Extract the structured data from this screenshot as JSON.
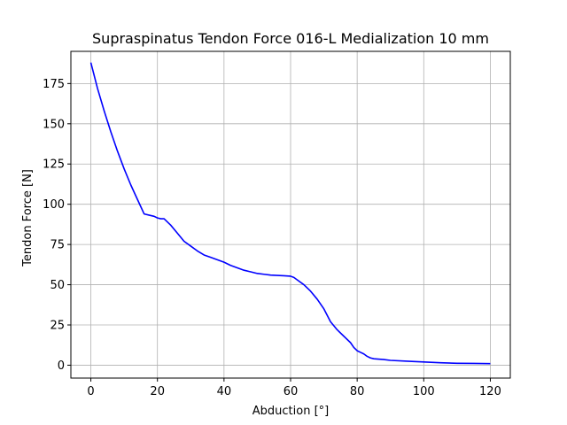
{
  "chart_data": {
    "type": "line",
    "title": "Supraspinatus Tendon Force 016-L Medialization 10 mm",
    "xlabel": "Abduction [°]",
    "ylabel": "Tendon Force [N]",
    "xlim": [
      -6,
      126
    ],
    "ylim": [
      -8,
      195
    ],
    "xticks": [
      0,
      20,
      40,
      60,
      80,
      100,
      120
    ],
    "yticks": [
      0,
      25,
      50,
      75,
      100,
      125,
      150,
      175
    ],
    "grid": true,
    "legend": "none",
    "colors": {
      "line": "#0000ff",
      "grid": "#b0b0b0",
      "axes": "#000000"
    },
    "series": [
      {
        "x": [
          0,
          2,
          4,
          6,
          8,
          10,
          12,
          14,
          16,
          18,
          19,
          20,
          21,
          22,
          24,
          26,
          28,
          30,
          32,
          34,
          36,
          38,
          40,
          42,
          44,
          46,
          48,
          50,
          52,
          54,
          56,
          58,
          60,
          61,
          62,
          64,
          66,
          68,
          70,
          72,
          74,
          76,
          78,
          79,
          80,
          81,
          82,
          83,
          84,
          85,
          88,
          90,
          95,
          100,
          105,
          110,
          115,
          120
        ],
        "y": [
          188,
          172,
          158,
          145,
          133,
          122,
          112,
          103,
          94,
          93,
          92.5,
          91.5,
          91,
          91,
          87,
          82,
          77,
          74,
          71,
          68.5,
          67,
          65.5,
          64,
          62,
          60.5,
          59,
          58,
          57,
          56.5,
          56,
          55.8,
          55.6,
          55.3,
          54.5,
          53,
          50,
          46,
          41,
          35,
          27,
          22,
          18,
          14,
          11,
          9,
          8,
          7,
          5.5,
          4.5,
          4,
          3.5,
          3,
          2.5,
          2,
          1.5,
          1.2,
          1.1,
          1
        ]
      }
    ]
  }
}
